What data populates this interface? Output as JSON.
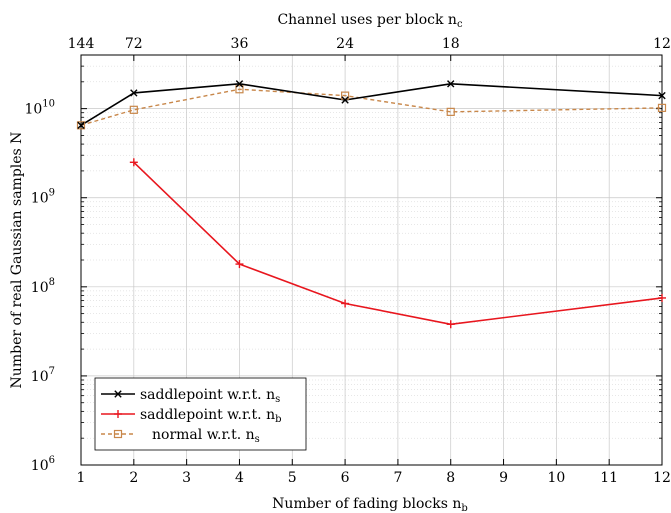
{
  "chart_data": {
    "type": "line",
    "xlabel": "Number of fading blocks n",
    "xlabel_sub": "b",
    "x2label": "Channel uses per block n",
    "x2label_sub": "c",
    "ylabel": "Number of real Gaussian samples N",
    "xlim": [
      1,
      12
    ],
    "ylim": [
      1000000,
      40000000000
    ],
    "yscale": "log",
    "grid": true,
    "legend_position": "bottom-left",
    "x_ticks": [
      "1",
      "2",
      "3",
      "4",
      "5",
      "6",
      "7",
      "8",
      "9",
      "10",
      "11",
      "12"
    ],
    "x2_ticks": [
      {
        "at": 1,
        "label": "144"
      },
      {
        "at": 2,
        "label": "72"
      },
      {
        "at": 4,
        "label": "36"
      },
      {
        "at": 6,
        "label": "24"
      },
      {
        "at": 8,
        "label": "18"
      },
      {
        "at": 12,
        "label": "12"
      }
    ],
    "y_ticks": [
      {
        "exp": 6,
        "label": "10",
        "sup": "6"
      },
      {
        "exp": 7,
        "label": "10",
        "sup": "7"
      },
      {
        "exp": 8,
        "label": "10",
        "sup": "8"
      },
      {
        "exp": 9,
        "label": "10",
        "sup": "9"
      },
      {
        "exp": 10,
        "label": "10",
        "sup": "10"
      }
    ],
    "series": [
      {
        "name": "saddlepoint w.r.t. n",
        "name_sub": "s",
        "color": "#000000",
        "marker": "x",
        "dash": "solid",
        "x": [
          1,
          2,
          4,
          6,
          8,
          12
        ],
        "y": [
          6500000000,
          15000000000,
          19000000000,
          12500000000,
          19000000000,
          14000000000
        ]
      },
      {
        "name": "saddlepoint w.r.t. n",
        "name_sub": "b",
        "color": "#e8161e",
        "marker": "+",
        "dash": "solid",
        "x": [
          2,
          4,
          6,
          8,
          12
        ],
        "y": [
          2500000000,
          180000000,
          65000000,
          38000000,
          75000000
        ]
      },
      {
        "name": "normal w.r.t. n",
        "name_sub": "s",
        "color": "#c8874a",
        "marker": "square",
        "dash": "dashed",
        "x": [
          1,
          2,
          4,
          6,
          8,
          12
        ],
        "y": [
          6500000000,
          9700000000,
          16500000000,
          14000000000,
          9200000000,
          10200000000
        ]
      }
    ]
  }
}
